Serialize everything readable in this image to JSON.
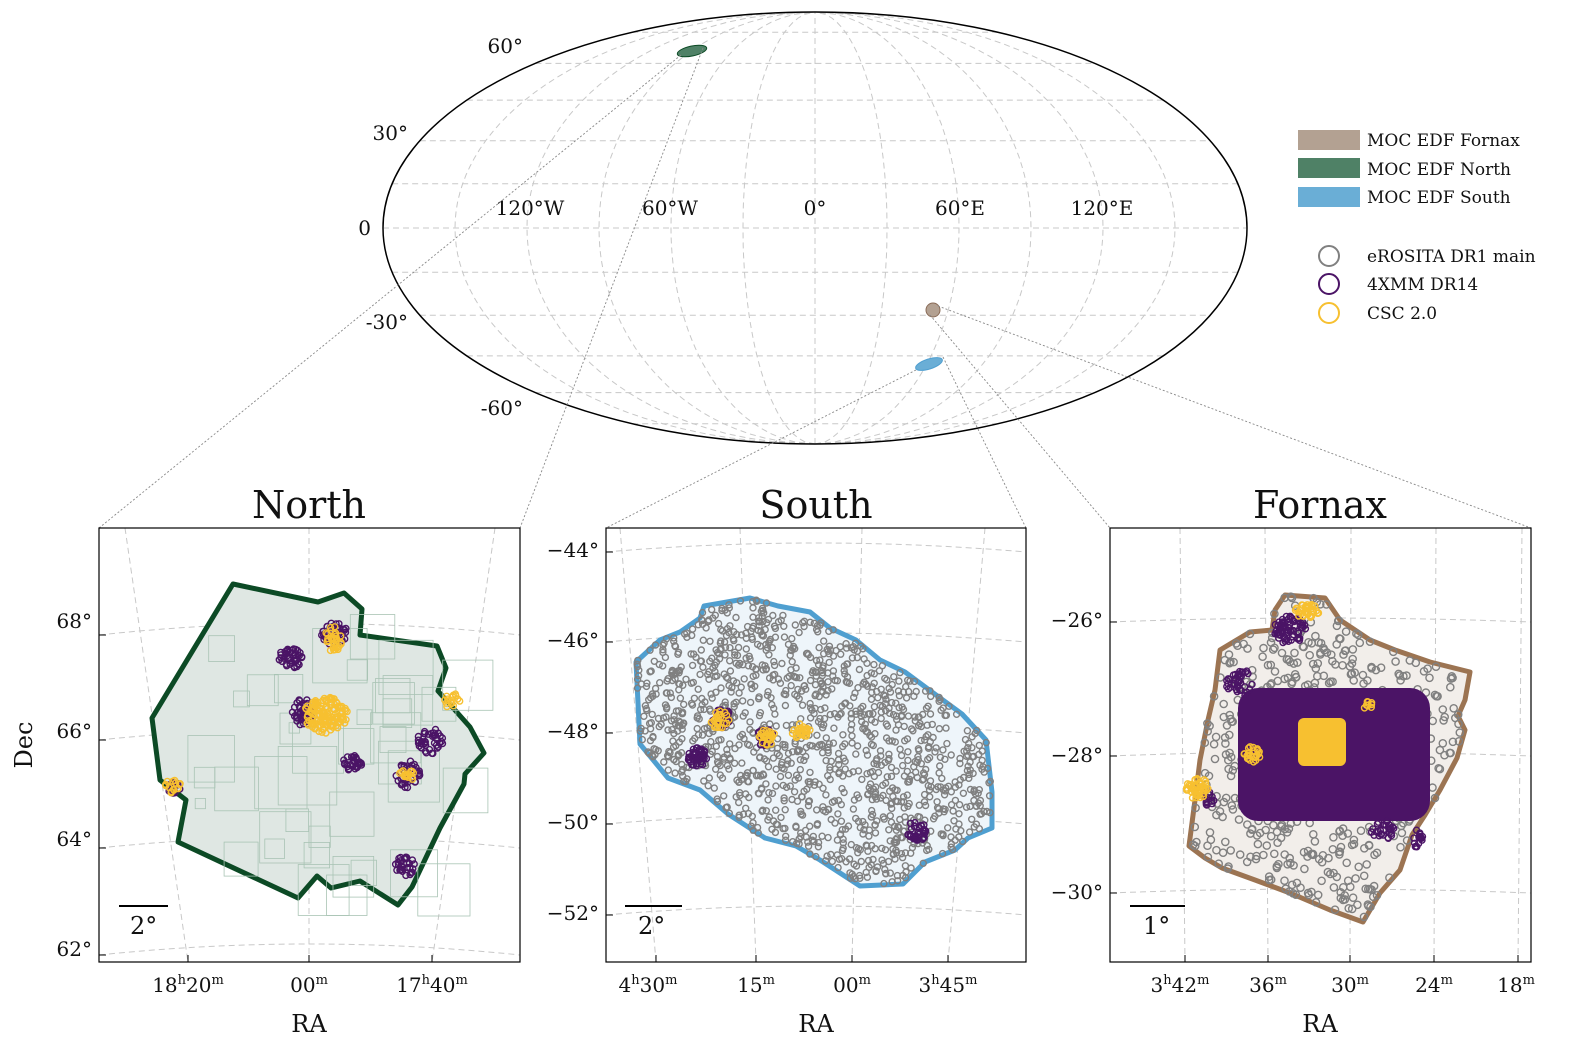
{
  "colors": {
    "fornax": "#b3a192",
    "north": "#4f8166",
    "north_edge": "#0c4a25",
    "north_fill": "#dfe7e3",
    "south": "#6aaed6",
    "south_edge": "#4f9fd0",
    "fornax_edge": "#9c7452",
    "fornax_fill": "#f2eeea",
    "erosita": "#808080",
    "xmm": "#4b1466",
    "csc": "#f7c030",
    "grid": "#c8c8c8"
  },
  "legend": {
    "moc": [
      {
        "label": "MOC EDF Fornax",
        "color_key": "fornax"
      },
      {
        "label": "MOC EDF North",
        "color_key": "north"
      },
      {
        "label": "MOC EDF South",
        "color_key": "south"
      }
    ],
    "catalogs": [
      {
        "label": "eROSITA DR1 main",
        "color_key": "erosita"
      },
      {
        "label": "4XMM DR14",
        "color_key": "xmm"
      },
      {
        "label": "CSC 2.0",
        "color_key": "csc"
      }
    ]
  },
  "chart_data": [
    {
      "type": "scatter",
      "projection": "mollweide",
      "lon_tick_labels": [
        "120°W",
        "60°W",
        "0°",
        "60°E",
        "120°E"
      ],
      "lat_tick_labels": [
        "60°",
        "30°",
        "0",
        "-30°",
        "-60°"
      ],
      "regions": [
        {
          "name": "MOC EDF North",
          "lon": -54,
          "lat": 66
        },
        {
          "name": "MOC EDF Fornax",
          "lon": 53,
          "lat": -28
        },
        {
          "name": "MOC EDF South",
          "lon": 61,
          "lat": -48
        }
      ]
    },
    {
      "type": "scatter",
      "title": "North",
      "xlabel": "RA",
      "ylabel": "Dec",
      "x_tick_labels": [
        {
          "main": "18",
          "sup1": "h",
          "mid": "20",
          "sup2": "m"
        },
        {
          "main": "00",
          "sup1": "",
          "mid": "",
          "sup2": "m"
        },
        {
          "main": "17",
          "sup1": "h",
          "mid": "40",
          "sup2": "m"
        }
      ],
      "y_tick_labels": [
        "68°",
        "66°",
        "64°",
        "62°"
      ],
      "scale_bar": "2°"
    },
    {
      "type": "scatter",
      "title": "South",
      "xlabel": "RA",
      "ylabel": "",
      "x_tick_labels": [
        {
          "main": "4",
          "sup1": "h",
          "mid": "30",
          "sup2": "m"
        },
        {
          "main": "15",
          "sup1": "",
          "mid": "",
          "sup2": "m"
        },
        {
          "main": "00",
          "sup1": "",
          "mid": "",
          "sup2": "m"
        },
        {
          "main": "3",
          "sup1": "h",
          "mid": "45",
          "sup2": "m"
        }
      ],
      "y_tick_labels": [
        "−44°",
        "−46°",
        "−48°",
        "−50°",
        "−52°"
      ],
      "scale_bar": "2°"
    },
    {
      "type": "scatter",
      "title": "Fornax",
      "xlabel": "RA",
      "ylabel": "",
      "x_tick_labels": [
        {
          "main": "3",
          "sup1": "h",
          "mid": "42",
          "sup2": "m"
        },
        {
          "main": "36",
          "sup1": "",
          "mid": "",
          "sup2": "m"
        },
        {
          "main": "30",
          "sup1": "",
          "mid": "",
          "sup2": "m"
        },
        {
          "main": "24",
          "sup1": "",
          "mid": "",
          "sup2": "m"
        },
        {
          "main": "18",
          "sup1": "",
          "mid": "",
          "sup2": "m"
        }
      ],
      "y_tick_labels": [
        "−26°",
        "−28°",
        "−30°"
      ],
      "scale_bar": "1°"
    }
  ]
}
